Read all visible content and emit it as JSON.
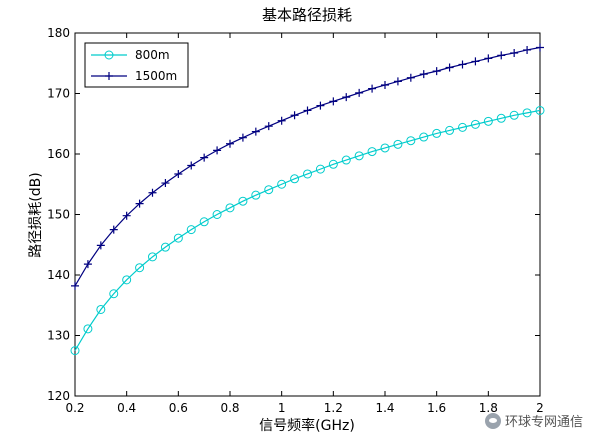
{
  "chart_data": {
    "type": "line",
    "title": "基本路径损耗",
    "xlabel": "信号频率(GHz)",
    "ylabel": "路径损耗(dB)",
    "xlim": [
      0.2,
      2
    ],
    "ylim": [
      120,
      180
    ],
    "xticks": [
      "0.2",
      "0.4",
      "0.6",
      "0.8",
      "1",
      "1.2",
      "1.4",
      "1.6",
      "1.8",
      "2"
    ],
    "yticks": [
      "120",
      "130",
      "140",
      "150",
      "160",
      "170",
      "180"
    ],
    "x": [
      0.2,
      0.25,
      0.3,
      0.35,
      0.4,
      0.45,
      0.5,
      0.55,
      0.6,
      0.65,
      0.7,
      0.75,
      0.8,
      0.85,
      0.9,
      0.95,
      1.0,
      1.05,
      1.1,
      1.15,
      1.2,
      1.25,
      1.3,
      1.35,
      1.4,
      1.45,
      1.5,
      1.55,
      1.6,
      1.65,
      1.7,
      1.75,
      1.8,
      1.85,
      1.9,
      1.95,
      2.0
    ],
    "series": [
      {
        "name": "800m",
        "color": "#00cccc",
        "marker": "circle",
        "values": [
          127.5,
          131.1,
          134.3,
          136.9,
          139.2,
          141.2,
          143.0,
          144.6,
          146.1,
          147.5,
          148.8,
          150.0,
          151.1,
          152.2,
          153.2,
          154.1,
          155.0,
          155.9,
          156.7,
          157.5,
          158.3,
          159.0,
          159.7,
          160.4,
          161.0,
          161.6,
          162.2,
          162.8,
          163.4,
          163.9,
          164.4,
          164.9,
          165.4,
          165.9,
          166.4,
          166.8,
          167.2
        ]
      },
      {
        "name": "1500m",
        "color": "#000080",
        "marker": "plus",
        "values": [
          138.2,
          141.8,
          144.9,
          147.5,
          149.8,
          151.8,
          153.6,
          155.2,
          156.7,
          158.1,
          159.4,
          160.6,
          161.7,
          162.7,
          163.7,
          164.6,
          165.5,
          166.4,
          167.2,
          168.0,
          168.7,
          169.4,
          170.1,
          170.8,
          171.4,
          172.0,
          172.6,
          173.2,
          173.7,
          174.3,
          174.8,
          175.3,
          175.8,
          176.3,
          176.7,
          177.2,
          177.6
        ]
      }
    ],
    "grid": false,
    "legend_position": "top-left"
  },
  "watermark": {
    "text": "环球专网通信",
    "icon": "wechat-icon"
  }
}
